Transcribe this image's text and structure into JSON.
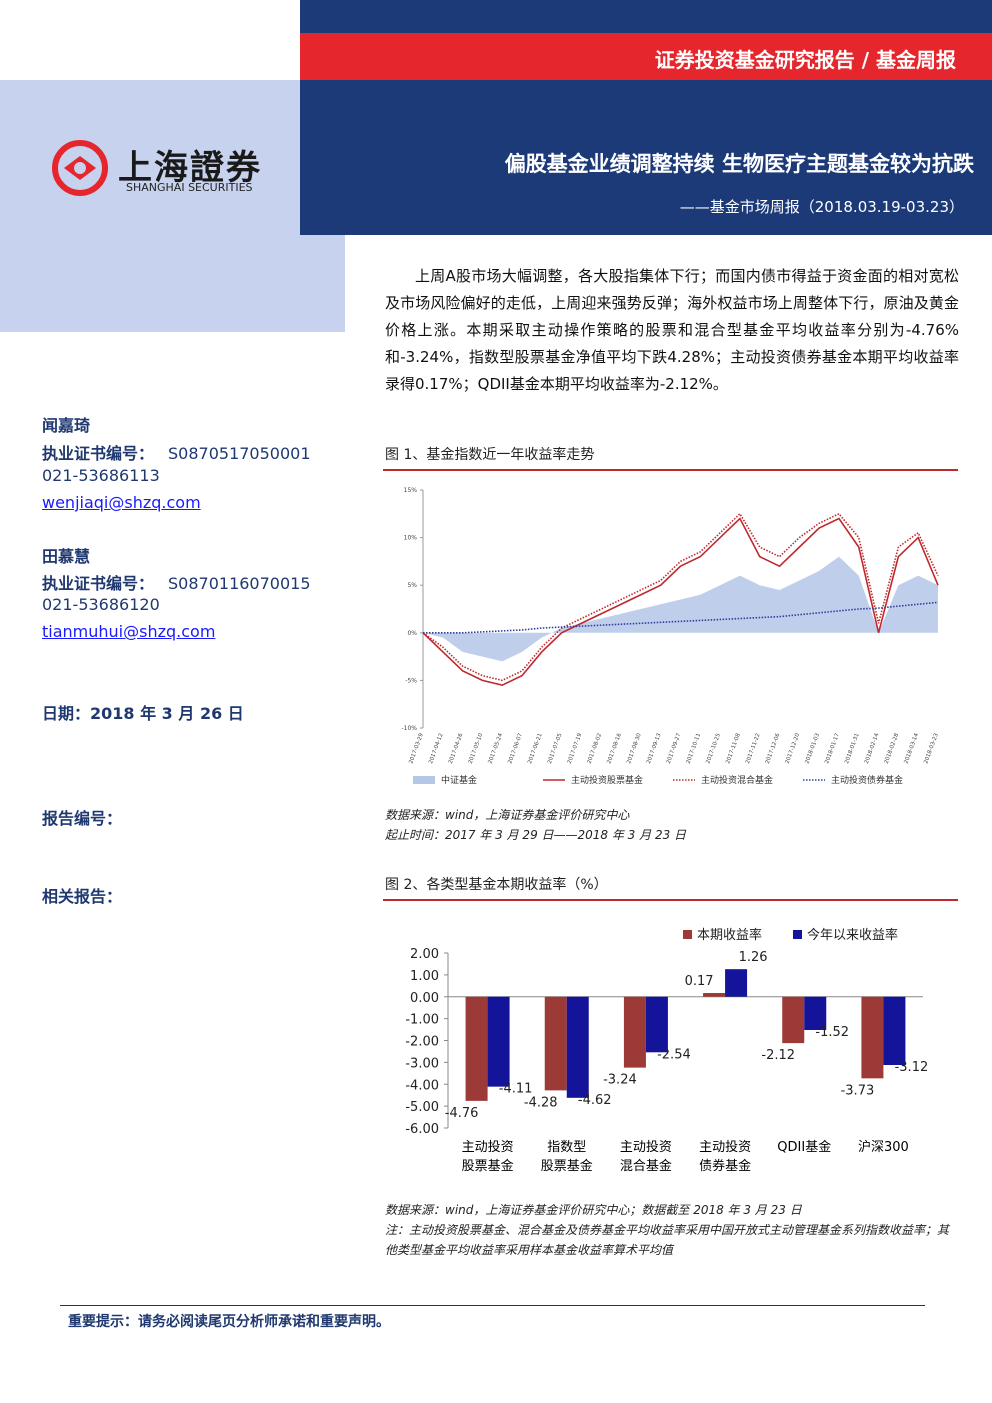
{
  "header": {
    "banner": "证券投资基金研究报告 / 基金周报",
    "company_cn": "上海證券",
    "company_en": "SHANGHAI SECURITIES",
    "title": "偏股基金业绩调整持续 生物医疗主题基金较为抗跌",
    "subtitle": "——基金市场周报（2018.03.19-03.23）"
  },
  "sidebar": {
    "analysts": [
      {
        "name": "闻嘉琦",
        "cert_label": "执业证书编号：",
        "cert": "S0870517050001",
        "phone": "021-53686113",
        "email": "wenjiaqi@shzq.com"
      },
      {
        "name": "田慕慧",
        "cert_label": "执业证书编号：",
        "cert": "S0870116070015",
        "phone": "021-53686120",
        "email": "tianmuhui@shzq.com"
      }
    ],
    "date": "日期：2018 年 3 月 26 日",
    "report_no": "报告编号：",
    "related": "相关报告："
  },
  "summary": "上周A股市场大幅调整，各大股指集体下行；而国内债市得益于资金面的相对宽松及市场风险偏好的走低，上周迎来强势反弹；海外权益市场上周整体下行，原油及黄金价格上涨。本期采取主动操作策略的股票和混合型基金平均收益率分别为-4.76%和-3.24%，指数型股票基金净值平均下跌4.28%；主动投资债券基金本期平均收益率录得0.17%；QDII基金本期平均收益率为-2.12%。",
  "figure1": {
    "caption": "图 1、基金指数近一年收益率走势",
    "chart_data": {
      "type": "line",
      "x": [
        "2017-03-29",
        "2017-04-12",
        "2017-04-26",
        "2017-05-10",
        "2017-05-24",
        "2017-06-07",
        "2017-06-21",
        "2017-07-05",
        "2017-07-19",
        "2017-08-02",
        "2017-08-16",
        "2017-08-30",
        "2017-09-13",
        "2017-09-27",
        "2017-10-11",
        "2017-10-25",
        "2017-11-08",
        "2017-11-22",
        "2017-12-06",
        "2017-12-20",
        "2018-01-03",
        "2018-01-17",
        "2018-01-31",
        "2018-02-14",
        "2018-02-28",
        "2018-03-14",
        "2018-03-23"
      ],
      "series": [
        {
          "name": "中证基金",
          "color": "#b4c7e7",
          "style": "area",
          "values": [
            0,
            -0.5,
            -2,
            -2.5,
            -3,
            -2,
            -0.5,
            0.5,
            1,
            1.5,
            2,
            2.5,
            3,
            3.5,
            4,
            5,
            6,
            5,
            4.5,
            5.5,
            6.5,
            8,
            6,
            0,
            5,
            6,
            5
          ]
        },
        {
          "name": "主动投资股票基金",
          "color": "#c0282d",
          "style": "solid",
          "values": [
            0,
            -2,
            -4,
            -5,
            -5.5,
            -4.5,
            -2,
            0,
            1,
            2,
            3,
            4,
            5,
            7,
            8,
            10,
            12,
            8,
            7,
            9,
            11,
            12,
            9,
            0,
            8,
            10,
            5
          ]
        },
        {
          "name": "主动投资混合基金",
          "color": "#c0282d",
          "style": "dotted",
          "values": [
            0,
            -1.5,
            -3.5,
            -4.5,
            -5,
            -4,
            -1.5,
            0.5,
            1.5,
            2.5,
            3.5,
            4.5,
            5.5,
            7.5,
            8.5,
            10.5,
            12.5,
            9,
            8,
            10,
            11.5,
            12.5,
            10,
            1,
            9,
            10.5,
            6
          ]
        },
        {
          "name": "主动投资债券基金",
          "color": "#2f3f9e",
          "style": "dotted",
          "values": [
            0,
            0,
            0,
            0.1,
            0.2,
            0.3,
            0.5,
            0.6,
            0.7,
            0.8,
            0.9,
            1,
            1.1,
            1.2,
            1.3,
            1.4,
            1.5,
            1.6,
            1.7,
            1.9,
            2.1,
            2.3,
            2.5,
            2.6,
            2.8,
            3,
            3.2
          ]
        }
      ],
      "ylim": [
        -10,
        15
      ],
      "yticks": [
        {
          "value": 15,
          "label": "15%"
        },
        {
          "value": 10,
          "label": "10%"
        },
        {
          "value": 5,
          "label": "5%"
        },
        {
          "value": 0,
          "label": "0%"
        },
        {
          "value": -5,
          "label": "-5%"
        },
        {
          "value": -10,
          "label": "-10%"
        }
      ]
    },
    "source": "数据来源：wind，上海证券基金评价研究中心",
    "period": "起止时间：2017 年 3 月 29 日——2018 年 3 月 23 日"
  },
  "figure2": {
    "caption": "图 2、各类型基金本期收益率（%）",
    "chart_data": {
      "type": "bar",
      "categories": [
        "主动投资\n股票基金",
        "指数型\n股票基金",
        "主动投资\n混合基金",
        "主动投资\n债券基金",
        "QDII基金",
        "沪深300"
      ],
      "series": [
        {
          "name": "本期收益率",
          "color": "#9b3a36",
          "values": [
            -4.76,
            -4.28,
            -3.24,
            0.17,
            -2.12,
            -3.73
          ]
        },
        {
          "name": "今年以来收益率",
          "color": "#14149a",
          "values": [
            -4.11,
            -4.62,
            -2.54,
            1.26,
            -1.52,
            -3.12
          ]
        }
      ],
      "ylim": [
        -6,
        2
      ],
      "yticks": [
        {
          "value": 2,
          "label": "2.00"
        },
        {
          "value": 1,
          "label": "1.00"
        },
        {
          "value": 0,
          "label": "0.00"
        },
        {
          "value": -1,
          "label": "-1.00"
        },
        {
          "value": -2,
          "label": "-2.00"
        },
        {
          "value": -3,
          "label": "-3.00"
        },
        {
          "value": -4,
          "label": "-4.00"
        },
        {
          "value": -5,
          "label": "-5.00"
        },
        {
          "value": -6,
          "label": "-6.00"
        }
      ]
    },
    "source": "数据来源：wind，上海证券基金评价研究中心；数据截至 2018 年 3 月 23 日",
    "note": "注：主动投资股票基金、混合基金及债券基金平均收益率采用中国开放式主动管理基金系列指数收益率；其他类型基金平均收益率采用样本基金收益率算术平均值"
  },
  "footer": "重要提示：请务必阅读尾页分析师承诺和重要声明。"
}
